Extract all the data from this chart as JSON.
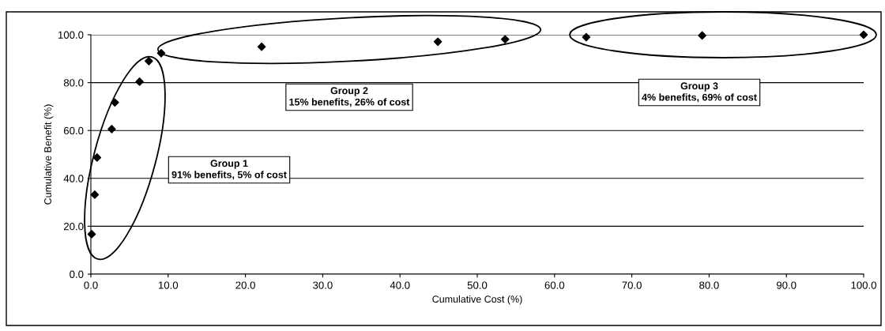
{
  "chart_data": {
    "type": "scatter",
    "xlabel": "Cumulative Cost (%)",
    "ylabel": "Cumulative Benefit (%)",
    "x": [
      0.1,
      0.5,
      0.8,
      2.7,
      3.1,
      6.3,
      7.5,
      9.1,
      22.1,
      44.9,
      53.6,
      64.1,
      79.1,
      100.0
    ],
    "values": [
      16.7,
      33.2,
      48.7,
      60.6,
      71.7,
      80.4,
      89.0,
      92.3,
      95.0,
      97.1,
      98.1,
      99.0,
      99.7,
      100.0
    ],
    "color": "#000000",
    "marker": "diamond",
    "xlim": [
      0,
      100
    ],
    "ylim": [
      0,
      100
    ],
    "xticks": [
      {
        "value": 0,
        "label": "0.0"
      },
      {
        "value": 10,
        "label": "10.0"
      },
      {
        "value": 20,
        "label": "20.0"
      },
      {
        "value": 30,
        "label": "30.0"
      },
      {
        "value": 40,
        "label": "40.0"
      },
      {
        "value": 50,
        "label": "50.0"
      },
      {
        "value": 60,
        "label": "60.0"
      },
      {
        "value": 70,
        "label": "70.0"
      },
      {
        "value": 80,
        "label": "80.0"
      },
      {
        "value": 90,
        "label": "90.0"
      },
      {
        "value": 100,
        "label": "100.0"
      }
    ],
    "yticks": [
      {
        "value": 0,
        "label": "0.0"
      },
      {
        "value": 20,
        "label": "20.0"
      },
      {
        "value": 40,
        "label": "40.0"
      },
      {
        "value": 60,
        "label": "60.0"
      },
      {
        "value": 80,
        "label": "80.0"
      },
      {
        "value": 100,
        "label": "100.0"
      }
    ],
    "grid": "y",
    "annotations": [
      "Group 1\n91% benefits, 5% of cost",
      "Group 2\n15% benefits, 26% of cost",
      "Group 3\n4% benefits, 69% of cost"
    ]
  }
}
